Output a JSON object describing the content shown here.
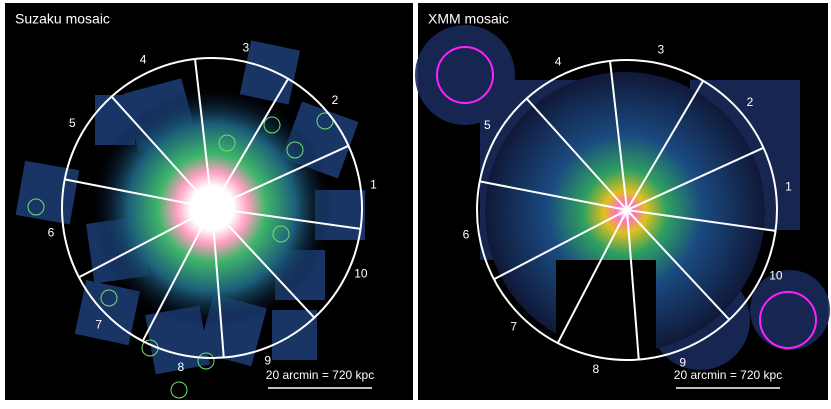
{
  "panels": [
    {
      "title": "Suzaku mosaic",
      "sectors": [
        "1",
        "2",
        "3",
        "4",
        "5",
        "6",
        "7",
        "8",
        "9",
        "10"
      ],
      "scale_label": "20 arcmin = 720 kpc"
    },
    {
      "title": "XMM mosaic",
      "sectors": [
        "1",
        "2",
        "3",
        "4",
        "5",
        "6",
        "7",
        "8",
        "9",
        "10"
      ],
      "scale_label": "20 arcmin = 720 kpc"
    }
  ]
}
